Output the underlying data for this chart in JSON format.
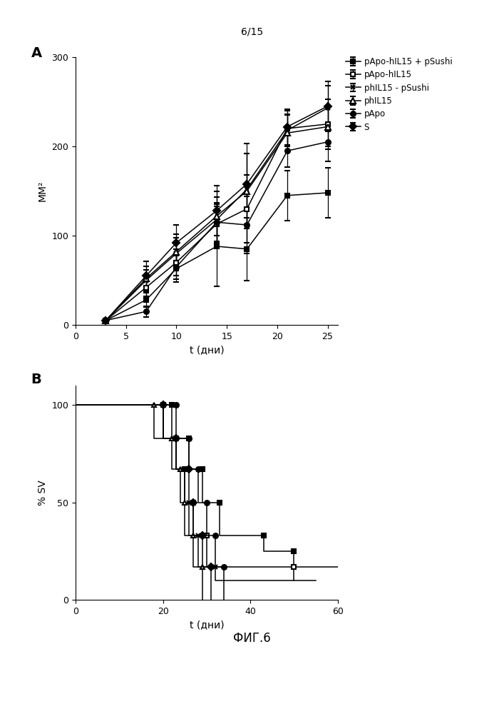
{
  "page_label": "6/15",
  "fig_label": "ФИГ.6",
  "panel_A": {
    "label": "A",
    "xlabel": "t (дни)",
    "ylabel": "MM²",
    "xlim": [
      0,
      26
    ],
    "ylim": [
      0,
      300
    ],
    "xticks": [
      0,
      5,
      10,
      15,
      20,
      25
    ],
    "yticks": [
      0,
      100,
      200,
      300
    ],
    "series": [
      {
        "label": "pApo-hIL15 + pSushi",
        "marker": "s",
        "fillstyle": "full",
        "x": [
          3,
          7,
          10,
          14,
          17,
          21,
          25
        ],
        "y": [
          5,
          28,
          63,
          88,
          85,
          145,
          148
        ],
        "yerr": [
          1,
          8,
          15,
          45,
          35,
          28,
          28
        ]
      },
      {
        "label": "pApo-hIL15",
        "marker": "s",
        "fillstyle": "none",
        "x": [
          3,
          7,
          10,
          14,
          17,
          21,
          25
        ],
        "y": [
          5,
          42,
          70,
          113,
          130,
          220,
          225
        ],
        "yerr": [
          1,
          10,
          15,
          22,
          38,
          20,
          28
        ]
      },
      {
        "label": "phIL15 - pSushi",
        "marker": "x",
        "fillstyle": "full",
        "x": [
          3,
          7,
          10,
          14,
          17,
          21,
          25
        ],
        "y": [
          5,
          50,
          80,
          118,
          152,
          218,
          243
        ],
        "yerr": [
          1,
          12,
          18,
          25,
          40,
          18,
          25
        ]
      },
      {
        "label": "phIL15",
        "marker": "^",
        "fillstyle": "none",
        "x": [
          3,
          7,
          10,
          14,
          17,
          21,
          25
        ],
        "y": [
          5,
          52,
          82,
          122,
          150,
          215,
          222
        ],
        "yerr": [
          1,
          14,
          20,
          28,
          42,
          20,
          22
        ]
      },
      {
        "label": "pApo",
        "marker": "o",
        "fillstyle": "full",
        "x": [
          3,
          7,
          10,
          14,
          17,
          21,
          25
        ],
        "y": [
          5,
          15,
          65,
          115,
          112,
          195,
          205
        ],
        "yerr": [
          1,
          6,
          14,
          22,
          32,
          18,
          22
        ]
      },
      {
        "label": "S",
        "marker": "D",
        "fillstyle": "full",
        "x": [
          3,
          7,
          10,
          14,
          17,
          21,
          25
        ],
        "y": [
          5,
          55,
          92,
          128,
          158,
          222,
          245
        ],
        "yerr": [
          1,
          16,
          20,
          28,
          45,
          20,
          28
        ]
      }
    ]
  },
  "panel_B": {
    "label": "B",
    "xlabel": "t (дни)",
    "ylabel": "% SV",
    "xlim": [
      0,
      60
    ],
    "ylim": [
      0,
      110
    ],
    "xticks": [
      0,
      20,
      40,
      60
    ],
    "yticks": [
      0,
      50,
      100
    ],
    "series": [
      {
        "label": "pApo-hIL15 + pSushi",
        "marker": "s",
        "fillstyle": "full",
        "steps": [
          [
            0,
            100
          ],
          [
            22,
            100
          ],
          [
            22,
            83
          ],
          [
            26,
            83
          ],
          [
            26,
            67
          ],
          [
            29,
            67
          ],
          [
            29,
            50
          ],
          [
            33,
            50
          ],
          [
            33,
            33
          ],
          [
            43,
            33
          ],
          [
            43,
            25
          ],
          [
            50,
            25
          ],
          [
            50,
            17
          ],
          [
            60,
            17
          ]
        ]
      },
      {
        "label": "pApo-hIL15",
        "marker": "s",
        "fillstyle": "none",
        "steps": [
          [
            0,
            100
          ],
          [
            20,
            100
          ],
          [
            20,
            83
          ],
          [
            23,
            83
          ],
          [
            23,
            67
          ],
          [
            25,
            67
          ],
          [
            25,
            50
          ],
          [
            27,
            50
          ],
          [
            27,
            33
          ],
          [
            30,
            33
          ],
          [
            30,
            17
          ],
          [
            50,
            17
          ],
          [
            50,
            10
          ],
          [
            55,
            10
          ]
        ]
      },
      {
        "label": "phIL15 - pSushi",
        "marker": "x",
        "fillstyle": "full",
        "steps": [
          [
            0,
            100
          ],
          [
            20,
            100
          ],
          [
            20,
            83
          ],
          [
            23,
            83
          ],
          [
            23,
            67
          ],
          [
            25,
            67
          ],
          [
            25,
            50
          ],
          [
            26,
            50
          ],
          [
            26,
            33
          ],
          [
            28,
            33
          ],
          [
            28,
            17
          ],
          [
            32,
            17
          ],
          [
            32,
            10
          ],
          [
            50,
            10
          ]
        ]
      },
      {
        "label": "phIL15",
        "marker": "^",
        "fillstyle": "none",
        "steps": [
          [
            0,
            100
          ],
          [
            18,
            100
          ],
          [
            18,
            83
          ],
          [
            22,
            83
          ],
          [
            22,
            67
          ],
          [
            24,
            67
          ],
          [
            24,
            50
          ],
          [
            25,
            50
          ],
          [
            25,
            33
          ],
          [
            27,
            33
          ],
          [
            27,
            17
          ],
          [
            29,
            17
          ],
          [
            29,
            0
          ]
        ]
      },
      {
        "label": "pApo",
        "marker": "o",
        "fillstyle": "full",
        "steps": [
          [
            0,
            100
          ],
          [
            23,
            100
          ],
          [
            23,
            83
          ],
          [
            26,
            83
          ],
          [
            26,
            67
          ],
          [
            28,
            67
          ],
          [
            28,
            50
          ],
          [
            30,
            50
          ],
          [
            30,
            33
          ],
          [
            32,
            33
          ],
          [
            32,
            17
          ],
          [
            34,
            17
          ],
          [
            34,
            0
          ]
        ]
      },
      {
        "label": "S",
        "marker": "D",
        "fillstyle": "full",
        "steps": [
          [
            0,
            100
          ],
          [
            20,
            100
          ],
          [
            20,
            83
          ],
          [
            23,
            83
          ],
          [
            23,
            67
          ],
          [
            26,
            67
          ],
          [
            26,
            50
          ],
          [
            27,
            50
          ],
          [
            27,
            33
          ],
          [
            29,
            33
          ],
          [
            29,
            17
          ],
          [
            31,
            17
          ],
          [
            31,
            0
          ]
        ]
      }
    ]
  }
}
